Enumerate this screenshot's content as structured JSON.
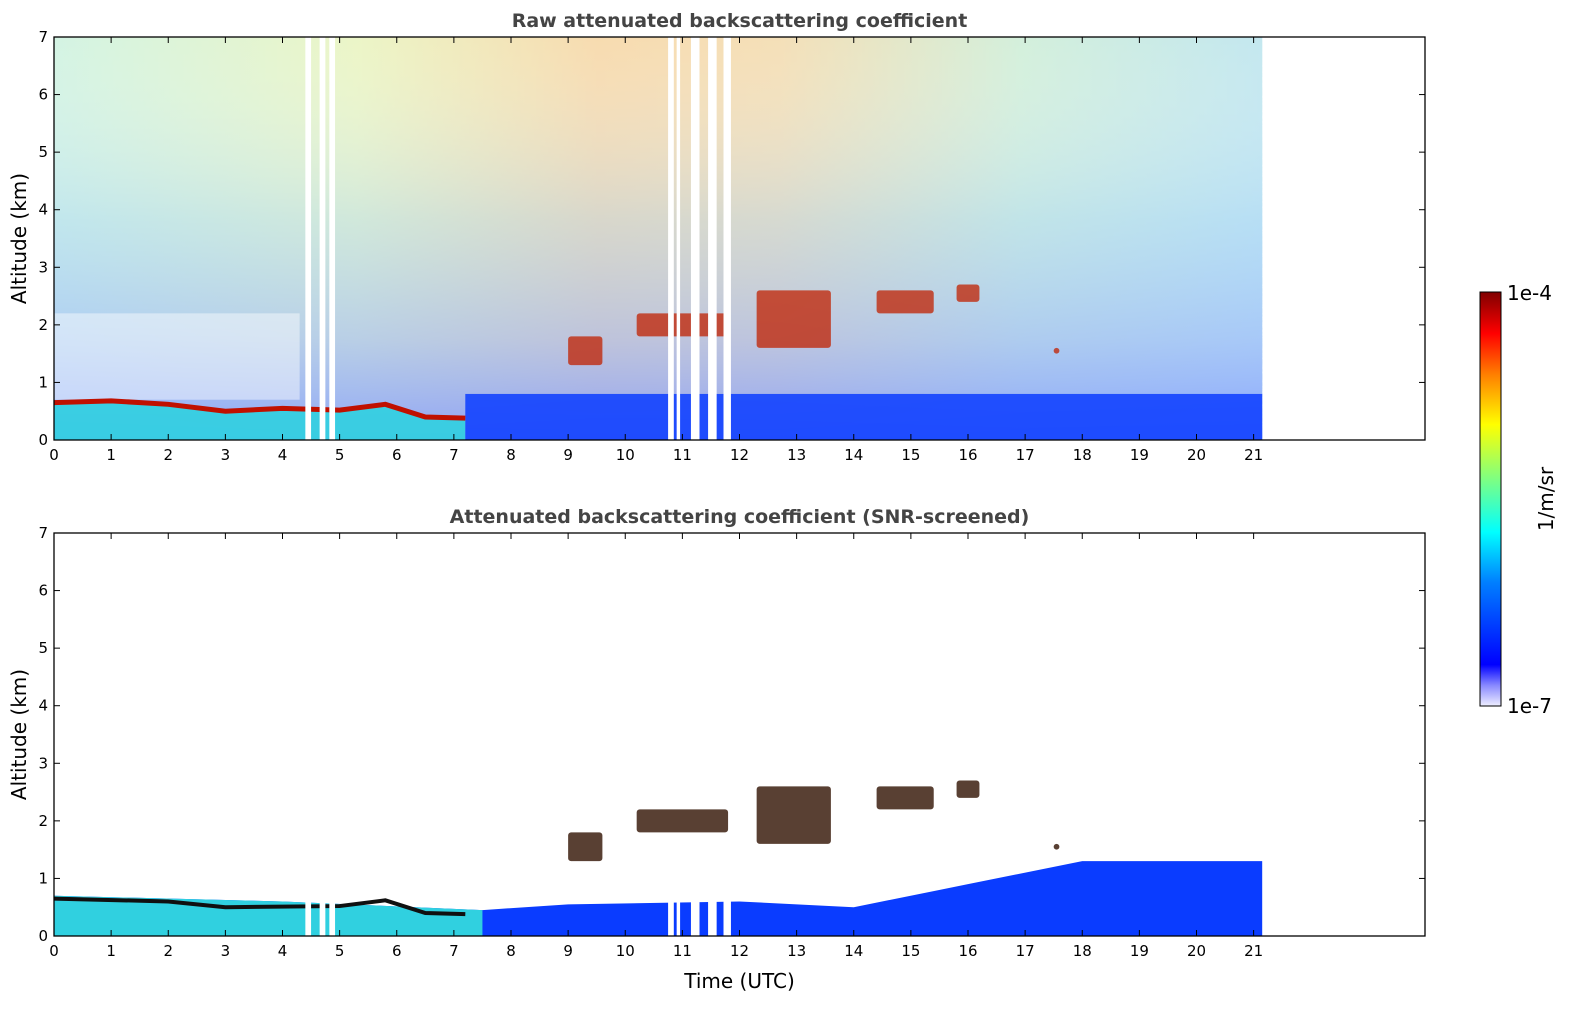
{
  "chart_data": [
    {
      "type": "heatmap",
      "title": "Raw attenuated backscattering coefficient",
      "xlabel": "",
      "ylabel": "Altitude (km)",
      "xlim": [
        0,
        24
      ],
      "ylim": [
        0,
        7
      ],
      "xticks": [
        0,
        1,
        2,
        3,
        4,
        5,
        6,
        7,
        8,
        9,
        10,
        11,
        12,
        13,
        14,
        15,
        16,
        17,
        18,
        19,
        20,
        21
      ],
      "yticks": [
        0,
        1,
        2,
        3,
        4,
        5,
        6,
        7
      ],
      "data_time_range": [
        0,
        21.15
      ],
      "data_gaps": [
        [
          4.4,
          4.5
        ],
        [
          4.65,
          4.75
        ],
        [
          4.82,
          4.92
        ],
        [
          10.75,
          10.85
        ],
        [
          10.9,
          10.96
        ],
        [
          11.15,
          11.3
        ],
        [
          11.45,
          11.6
        ],
        [
          11.72,
          11.85
        ]
      ],
      "boundary_layer_top": [
        {
          "x": 0,
          "y": 0.65
        },
        {
          "x": 1,
          "y": 0.68
        },
        {
          "x": 2,
          "y": 0.62
        },
        {
          "x": 3,
          "y": 0.5
        },
        {
          "x": 4,
          "y": 0.55
        },
        {
          "x": 5,
          "y": 0.52
        },
        {
          "x": 5.8,
          "y": 0.62
        },
        {
          "x": 6.5,
          "y": 0.4
        },
        {
          "x": 7.2,
          "y": 0.38
        }
      ],
      "cloud_layers": [
        {
          "x": [
            9.0,
            9.6
          ],
          "y": [
            1.3,
            1.8
          ]
        },
        {
          "x": [
            10.2,
            11.8
          ],
          "y": [
            1.8,
            2.2
          ]
        },
        {
          "x": [
            12.3,
            13.6
          ],
          "y": [
            1.6,
            2.6
          ]
        },
        {
          "x": [
            14.4,
            15.4
          ],
          "y": [
            2.2,
            2.6
          ]
        },
        {
          "x": [
            15.8,
            16.2
          ],
          "y": [
            2.4,
            2.7
          ]
        },
        {
          "x": [
            17.5,
            17.6
          ],
          "y": [
            1.5,
            1.6
          ]
        }
      ]
    },
    {
      "type": "heatmap",
      "title": "Attenuated backscattering coefficient (SNR-screened)",
      "xlabel": "Time (UTC)",
      "ylabel": "Altitude (km)",
      "xlim": [
        0,
        24
      ],
      "ylim": [
        0,
        7
      ],
      "xticks": [
        0,
        1,
        2,
        3,
        4,
        5,
        6,
        7,
        8,
        9,
        10,
        11,
        12,
        13,
        14,
        15,
        16,
        17,
        18,
        19,
        20,
        21
      ],
      "yticks": [
        0,
        1,
        2,
        3,
        4,
        5,
        6,
        7
      ],
      "data_time_range": [
        0,
        21.15
      ],
      "retained_boundary_layer_top": [
        {
          "x": 0,
          "y": 0.7
        },
        {
          "x": 4,
          "y": 0.6
        },
        {
          "x": 7.5,
          "y": 0.45
        },
        {
          "x": 9,
          "y": 0.55
        },
        {
          "x": 12,
          "y": 0.6
        },
        {
          "x": 14,
          "y": 0.5
        },
        {
          "x": 16,
          "y": 0.9
        },
        {
          "x": 18,
          "y": 1.3
        },
        {
          "x": 21,
          "y": 1.3
        }
      ]
    }
  ],
  "colorbar": {
    "label": "1/m/sr",
    "min_label": "1e-7",
    "max_label": "1e-4",
    "scale": "log",
    "colormap": "jet"
  }
}
